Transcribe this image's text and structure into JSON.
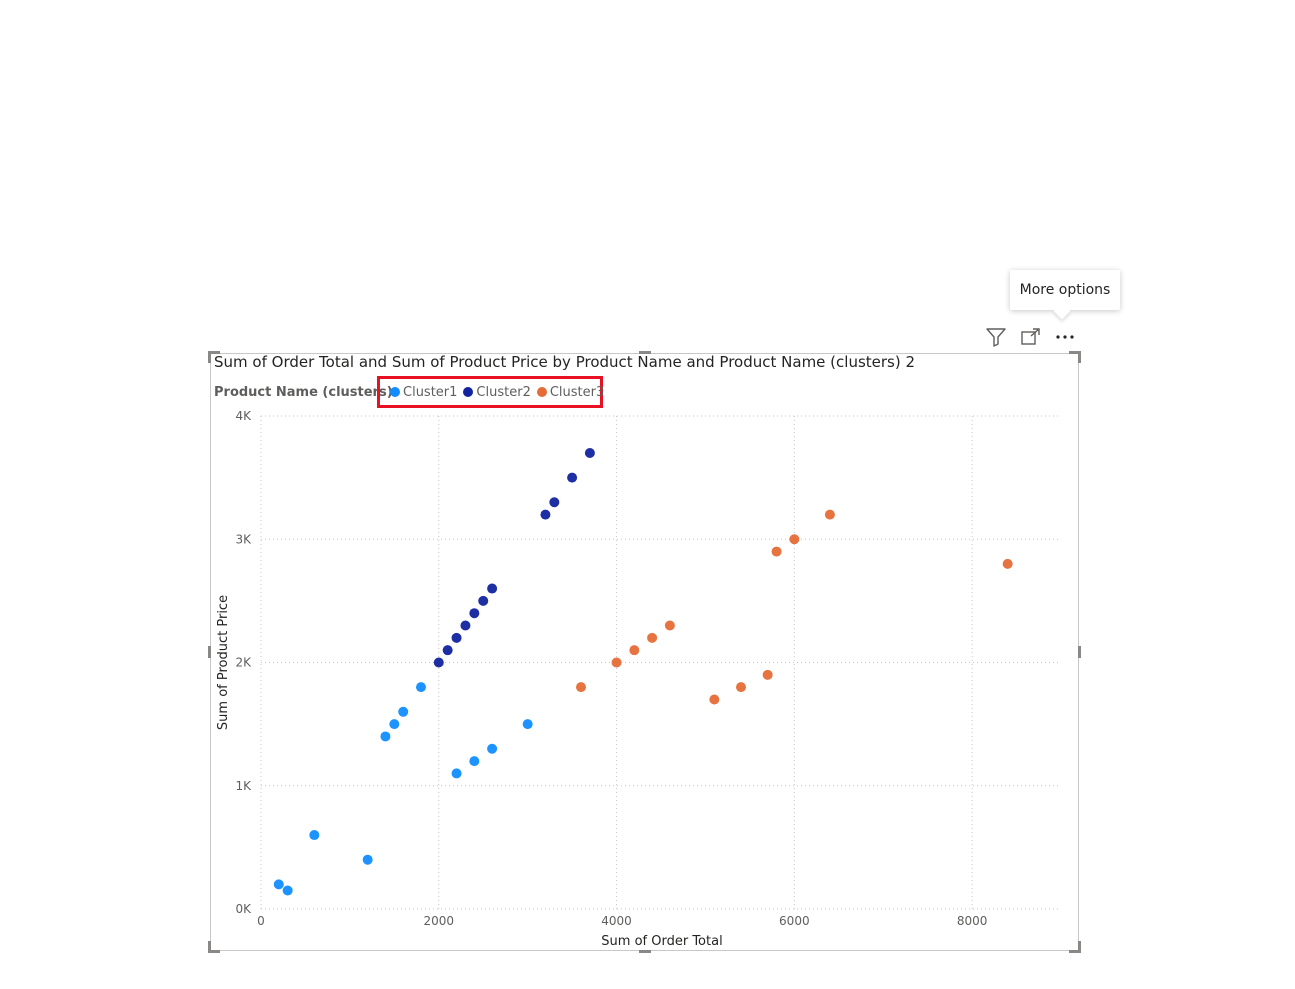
{
  "tooltip": {
    "text": "More options"
  },
  "header_icons": [
    "filter-icon",
    "focus-mode-icon",
    "more-options-icon"
  ],
  "legend": {
    "title": "Product Name (clusters)",
    "items": [
      {
        "label": "Cluster1",
        "color": "#118dff"
      },
      {
        "label": "Cluster2",
        "color": "#12239e"
      },
      {
        "label": "Cluster3",
        "color": "#e66c37"
      }
    ]
  },
  "chart_data": {
    "type": "scatter",
    "title": "Sum of Order Total and Sum of Product Price by Product Name and Product Name (clusters) 2",
    "xlabel": "Sum of Order Total",
    "ylabel": "Sum of Product Price",
    "xlim": [
      0,
      9000
    ],
    "ylim": [
      0,
      4000
    ],
    "xticks": [
      0,
      2000,
      4000,
      6000,
      8000
    ],
    "xtick_labels": [
      "0",
      "2000",
      "4000",
      "6000",
      "8000"
    ],
    "yticks": [
      0,
      1000,
      2000,
      3000,
      4000
    ],
    "ytick_labels": [
      "0K",
      "1K",
      "2K",
      "3K",
      "4K"
    ],
    "grid": true,
    "legend_position": "top-left",
    "series": [
      {
        "name": "Cluster1",
        "color": "#118dff",
        "points": [
          [
            200,
            200
          ],
          [
            300,
            150
          ],
          [
            600,
            600
          ],
          [
            1200,
            400
          ],
          [
            1400,
            1400
          ],
          [
            1500,
            1500
          ],
          [
            1600,
            1600
          ],
          [
            1800,
            1800
          ],
          [
            2200,
            1100
          ],
          [
            2400,
            1200
          ],
          [
            2600,
            1300
          ],
          [
            3000,
            1500
          ]
        ]
      },
      {
        "name": "Cluster2",
        "color": "#12239e",
        "points": [
          [
            2000,
            2000
          ],
          [
            2100,
            2100
          ],
          [
            2200,
            2200
          ],
          [
            2300,
            2300
          ],
          [
            2400,
            2400
          ],
          [
            2500,
            2500
          ],
          [
            2600,
            2600
          ],
          [
            3200,
            3200
          ],
          [
            3300,
            3300
          ],
          [
            3500,
            3500
          ],
          [
            3700,
            3700
          ]
        ]
      },
      {
        "name": "Cluster3",
        "color": "#e66c37",
        "points": [
          [
            3600,
            1800
          ],
          [
            4000,
            2000
          ],
          [
            4200,
            2100
          ],
          [
            4400,
            2200
          ],
          [
            4600,
            2300
          ],
          [
            5100,
            1700
          ],
          [
            5400,
            1800
          ],
          [
            5700,
            1900
          ],
          [
            5800,
            2900
          ],
          [
            6000,
            3000
          ],
          [
            6400,
            3200
          ],
          [
            8400,
            2800
          ]
        ]
      }
    ]
  }
}
